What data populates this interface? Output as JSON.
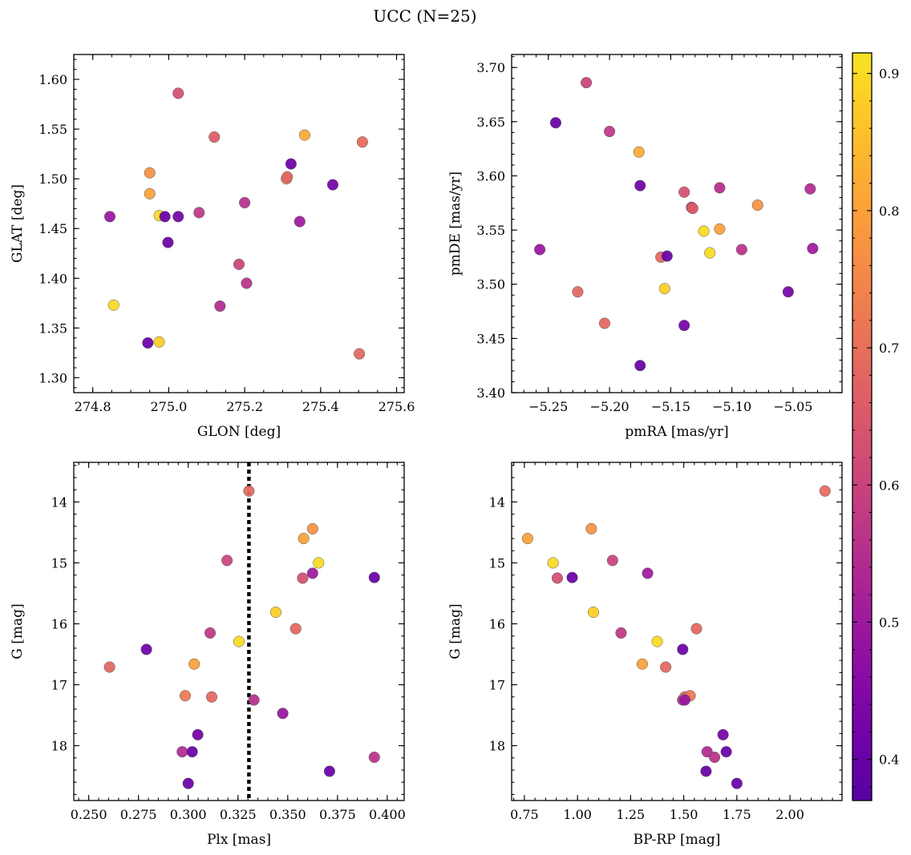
{
  "figure": {
    "title": "UCC (N=25)"
  },
  "colorbar": {
    "colormap": "plasma",
    "vmin": 0.37,
    "vmax": 0.915,
    "ticks": [
      "0.4",
      "0.5",
      "0.6",
      "0.7",
      "0.8",
      "0.9"
    ],
    "tick_values": [
      0.4,
      0.5,
      0.6,
      0.7,
      0.8,
      0.9
    ]
  },
  "chart_data": [
    {
      "type": "scatter",
      "id": "glon-glat",
      "xlabel": "GLON [deg]",
      "ylabel": "GLAT [deg]",
      "xlim": [
        274.75,
        275.62
      ],
      "ylim": [
        1.285,
        1.625
      ],
      "invert_y": false,
      "xticks": [
        "274.8",
        "275.0",
        "275.2",
        "275.4",
        "275.6"
      ],
      "xtick_values": [
        274.8,
        275.0,
        275.2,
        275.4,
        275.6
      ],
      "yticks": [
        "1.30",
        "1.35",
        "1.40",
        "1.45",
        "1.50",
        "1.55",
        "1.60"
      ],
      "ytick_values": [
        1.3,
        1.35,
        1.4,
        1.45,
        1.5,
        1.55,
        1.6
      ],
      "x_minor_step": 0.05,
      "y_minor_step": 0.01,
      "points": [
        {
          "x": 274.845,
          "y": 1.462,
          "c": 0.49
        },
        {
          "x": 274.855,
          "y": 1.373,
          "c": 0.9
        },
        {
          "x": 274.945,
          "y": 1.335,
          "c": 0.4
        },
        {
          "x": 274.95,
          "y": 1.506,
          "c": 0.77
        },
        {
          "x": 274.95,
          "y": 1.485,
          "c": 0.8
        },
        {
          "x": 274.975,
          "y": 1.463,
          "c": 0.9
        },
        {
          "x": 274.975,
          "y": 1.336,
          "c": 0.88
        },
        {
          "x": 274.99,
          "y": 1.462,
          "c": 0.4
        },
        {
          "x": 274.998,
          "y": 1.436,
          "c": 0.41
        },
        {
          "x": 275.025,
          "y": 1.586,
          "c": 0.63
        },
        {
          "x": 275.025,
          "y": 1.462,
          "c": 0.42
        },
        {
          "x": 275.08,
          "y": 1.466,
          "c": 0.57
        },
        {
          "x": 275.12,
          "y": 1.542,
          "c": 0.66
        },
        {
          "x": 275.135,
          "y": 1.372,
          "c": 0.54
        },
        {
          "x": 275.185,
          "y": 1.414,
          "c": 0.6
        },
        {
          "x": 275.2,
          "y": 1.476,
          "c": 0.55
        },
        {
          "x": 275.205,
          "y": 1.395,
          "c": 0.56
        },
        {
          "x": 275.31,
          "y": 1.5,
          "c": 0.72
        },
        {
          "x": 275.312,
          "y": 1.502,
          "c": 0.68
        },
        {
          "x": 275.322,
          "y": 1.515,
          "c": 0.4
        },
        {
          "x": 275.345,
          "y": 1.457,
          "c": 0.5
        },
        {
          "x": 275.358,
          "y": 1.544,
          "c": 0.82
        },
        {
          "x": 275.432,
          "y": 1.494,
          "c": 0.42
        },
        {
          "x": 275.502,
          "y": 1.324,
          "c": 0.68
        },
        {
          "x": 275.51,
          "y": 1.537,
          "c": 0.69
        }
      ]
    },
    {
      "type": "scatter",
      "id": "pmra-pmde",
      "xlabel": "pmRA [mas/yr]",
      "ylabel": "pmDE [mas/yr]",
      "xlim": [
        -5.28,
        -5.01
      ],
      "ylim": [
        3.4,
        3.712
      ],
      "invert_y": false,
      "xticks": [
        "−5.25",
        "−5.20",
        "−5.15",
        "−5.10",
        "−5.05"
      ],
      "xtick_values": [
        -5.25,
        -5.2,
        -5.15,
        -5.1,
        -5.05
      ],
      "yticks": [
        "3.40",
        "3.45",
        "3.50",
        "3.55",
        "3.60",
        "3.65",
        "3.70"
      ],
      "ytick_values": [
        3.4,
        3.45,
        3.5,
        3.55,
        3.6,
        3.65,
        3.7
      ],
      "x_minor_step": 0.01,
      "y_minor_step": 0.01,
      "points": [
        {
          "x": -5.257,
          "y": 3.532,
          "c": 0.49
        },
        {
          "x": -5.244,
          "y": 3.649,
          "c": 0.4
        },
        {
          "x": -5.226,
          "y": 3.493,
          "c": 0.68
        },
        {
          "x": -5.219,
          "y": 3.686,
          "c": 0.6
        },
        {
          "x": -5.204,
          "y": 3.464,
          "c": 0.68
        },
        {
          "x": -5.2,
          "y": 3.641,
          "c": 0.57
        },
        {
          "x": -5.176,
          "y": 3.622,
          "c": 0.82
        },
        {
          "x": -5.175,
          "y": 3.591,
          "c": 0.41
        },
        {
          "x": -5.175,
          "y": 3.425,
          "c": 0.4
        },
        {
          "x": -5.158,
          "y": 3.525,
          "c": 0.68
        },
        {
          "x": -5.155,
          "y": 3.496,
          "c": 0.88
        },
        {
          "x": -5.153,
          "y": 3.526,
          "c": 0.4
        },
        {
          "x": -5.139,
          "y": 3.585,
          "c": 0.63
        },
        {
          "x": -5.139,
          "y": 3.462,
          "c": 0.42
        },
        {
          "x": -5.133,
          "y": 3.571,
          "c": 0.6
        },
        {
          "x": -5.132,
          "y": 3.57,
          "c": 0.66
        },
        {
          "x": -5.123,
          "y": 3.549,
          "c": 0.9
        },
        {
          "x": -5.118,
          "y": 3.529,
          "c": 0.9
        },
        {
          "x": -5.11,
          "y": 3.589,
          "c": 0.55
        },
        {
          "x": -5.11,
          "y": 3.551,
          "c": 0.8
        },
        {
          "x": -5.092,
          "y": 3.532,
          "c": 0.56
        },
        {
          "x": -5.079,
          "y": 3.573,
          "c": 0.77
        },
        {
          "x": -5.054,
          "y": 3.493,
          "c": 0.42
        },
        {
          "x": -5.036,
          "y": 3.588,
          "c": 0.54
        },
        {
          "x": -5.034,
          "y": 3.533,
          "c": 0.5
        }
      ]
    },
    {
      "type": "scatter",
      "id": "plx-g",
      "xlabel": "Plx [mas]",
      "ylabel": "G [mag]",
      "xlim": [
        0.2425,
        0.4085
      ],
      "ylim": [
        13.35,
        18.9
      ],
      "invert_y": true,
      "xticks": [
        "0.250",
        "0.275",
        "0.300",
        "0.325",
        "0.350",
        "0.375",
        "0.400"
      ],
      "xtick_values": [
        0.25,
        0.275,
        0.3,
        0.325,
        0.35,
        0.375,
        0.4
      ],
      "yticks": [
        "14",
        "15",
        "16",
        "17",
        "18"
      ],
      "ytick_values": [
        14,
        15,
        16,
        17,
        18
      ],
      "x_minor_step": 0.005,
      "y_minor_step": 0.2,
      "vline": {
        "x": 0.3305,
        "style": "dotted",
        "color": "#000000"
      },
      "points": [
        {
          "x": 0.2605,
          "y": 16.71,
          "c": 0.68
        },
        {
          "x": 0.279,
          "y": 16.42,
          "c": 0.41
        },
        {
          "x": 0.297,
          "y": 18.1,
          "c": 0.54
        },
        {
          "x": 0.2985,
          "y": 17.18,
          "c": 0.72
        },
        {
          "x": 0.3,
          "y": 18.62,
          "c": 0.4
        },
        {
          "x": 0.302,
          "y": 18.1,
          "c": 0.4
        },
        {
          "x": 0.303,
          "y": 16.66,
          "c": 0.8
        },
        {
          "x": 0.3048,
          "y": 17.82,
          "c": 0.42
        },
        {
          "x": 0.3195,
          "y": 14.96,
          "c": 0.6
        },
        {
          "x": 0.311,
          "y": 16.15,
          "c": 0.57
        },
        {
          "x": 0.3118,
          "y": 17.2,
          "c": 0.68
        },
        {
          "x": 0.3255,
          "y": 16.29,
          "c": 0.9
        },
        {
          "x": 0.3305,
          "y": 13.82,
          "c": 0.69
        },
        {
          "x": 0.333,
          "y": 17.25,
          "c": 0.55
        },
        {
          "x": 0.344,
          "y": 15.81,
          "c": 0.88
        },
        {
          "x": 0.3475,
          "y": 17.47,
          "c": 0.49
        },
        {
          "x": 0.354,
          "y": 16.08,
          "c": 0.68
        },
        {
          "x": 0.3575,
          "y": 15.25,
          "c": 0.63
        },
        {
          "x": 0.358,
          "y": 14.6,
          "c": 0.8
        },
        {
          "x": 0.3625,
          "y": 14.44,
          "c": 0.77
        },
        {
          "x": 0.3625,
          "y": 15.17,
          "c": 0.5
        },
        {
          "x": 0.3655,
          "y": 15.0,
          "c": 0.9
        },
        {
          "x": 0.371,
          "y": 18.42,
          "c": 0.4
        },
        {
          "x": 0.3935,
          "y": 15.24,
          "c": 0.4
        },
        {
          "x": 0.3935,
          "y": 18.19,
          "c": 0.56
        }
      ]
    },
    {
      "type": "scatter",
      "id": "bprp-g",
      "xlabel": "BP-RP [mag]",
      "ylabel": "G [mag]",
      "xlim": [
        0.69,
        2.245
      ],
      "ylim": [
        13.35,
        18.9
      ],
      "invert_y": true,
      "xticks": [
        "0.75",
        "1.00",
        "1.25",
        "1.50",
        "1.75",
        "2.00"
      ],
      "xtick_values": [
        0.75,
        1.0,
        1.25,
        1.5,
        1.75,
        2.0
      ],
      "yticks": [
        "14",
        "15",
        "16",
        "17",
        "18"
      ],
      "ytick_values": [
        14,
        15,
        16,
        17,
        18
      ],
      "x_minor_step": 0.05,
      "y_minor_step": 0.2,
      "points": [
        {
          "x": 0.765,
          "y": 14.6,
          "c": 0.8
        },
        {
          "x": 0.885,
          "y": 15.0,
          "c": 0.9
        },
        {
          "x": 0.905,
          "y": 15.25,
          "c": 0.63
        },
        {
          "x": 0.975,
          "y": 15.24,
          "c": 0.4
        },
        {
          "x": 1.065,
          "y": 14.44,
          "c": 0.77
        },
        {
          "x": 1.075,
          "y": 15.81,
          "c": 0.88
        },
        {
          "x": 1.165,
          "y": 14.96,
          "c": 0.6
        },
        {
          "x": 1.205,
          "y": 16.15,
          "c": 0.57
        },
        {
          "x": 1.305,
          "y": 16.66,
          "c": 0.8
        },
        {
          "x": 1.33,
          "y": 15.17,
          "c": 0.5
        },
        {
          "x": 1.375,
          "y": 16.29,
          "c": 0.9
        },
        {
          "x": 1.415,
          "y": 16.71,
          "c": 0.68
        },
        {
          "x": 1.495,
          "y": 16.42,
          "c": 0.41
        },
        {
          "x": 1.495,
          "y": 17.25,
          "c": 0.55
        },
        {
          "x": 1.505,
          "y": 17.2,
          "c": 0.68
        },
        {
          "x": 1.53,
          "y": 17.18,
          "c": 0.72
        },
        {
          "x": 1.56,
          "y": 16.08,
          "c": 0.68
        },
        {
          "x": 1.61,
          "y": 18.1,
          "c": 0.54
        },
        {
          "x": 1.605,
          "y": 18.42,
          "c": 0.4
        },
        {
          "x": 1.645,
          "y": 18.19,
          "c": 0.56
        },
        {
          "x": 1.685,
          "y": 17.82,
          "c": 0.42
        },
        {
          "x": 1.7,
          "y": 18.1,
          "c": 0.4
        },
        {
          "x": 1.75,
          "y": 18.62,
          "c": 0.4
        },
        {
          "x": 2.165,
          "y": 13.82,
          "c": 0.69
        },
        {
          "x": 1.505,
          "y": 17.25,
          "c": 0.49
        }
      ]
    }
  ]
}
